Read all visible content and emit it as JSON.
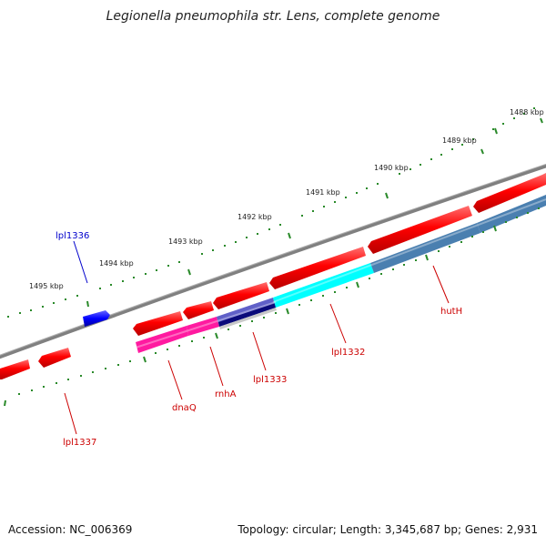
{
  "title": "Legionella pneumophila str. Lens, complete genome",
  "footer": {
    "accession": "Accession: NC_006369",
    "topology": "Topology: circular; Length: 3,345,687 bp; Genes: 2,931"
  },
  "ticks": [
    {
      "label": "1488 kbp"
    },
    {
      "label": "1489 kbp"
    },
    {
      "label": "1490 kbp"
    },
    {
      "label": "1491 kbp"
    },
    {
      "label": "1492 kbp"
    },
    {
      "label": "1493 kbp"
    },
    {
      "label": "1494 kbp"
    },
    {
      "label": "1495 kbp"
    }
  ],
  "genes": [
    {
      "label": "lpl1336",
      "color": "#0000cc"
    },
    {
      "label": "lpl1337",
      "color": "#cc0000"
    },
    {
      "label": "dnaQ",
      "color": "#cc0000"
    },
    {
      "label": "rnhA",
      "color": "#cc0000"
    },
    {
      "label": "lpl1333",
      "color": "#cc0000"
    },
    {
      "label": "lpl1332",
      "color": "#cc0000"
    },
    {
      "label": "hutH",
      "color": "#cc0000"
    }
  ],
  "colors": {
    "backbone": "#808080",
    "cds": "#ff0000",
    "rna": "#0000ff",
    "tick": "#2a8a2a",
    "cog_magenta": "#ff1aa0",
    "cog_cyan": "#00ffff",
    "cog_steel": "#4a7fb0",
    "cog_navy": "#0a0a7a",
    "cog_grey": "#c8c8c8"
  }
}
